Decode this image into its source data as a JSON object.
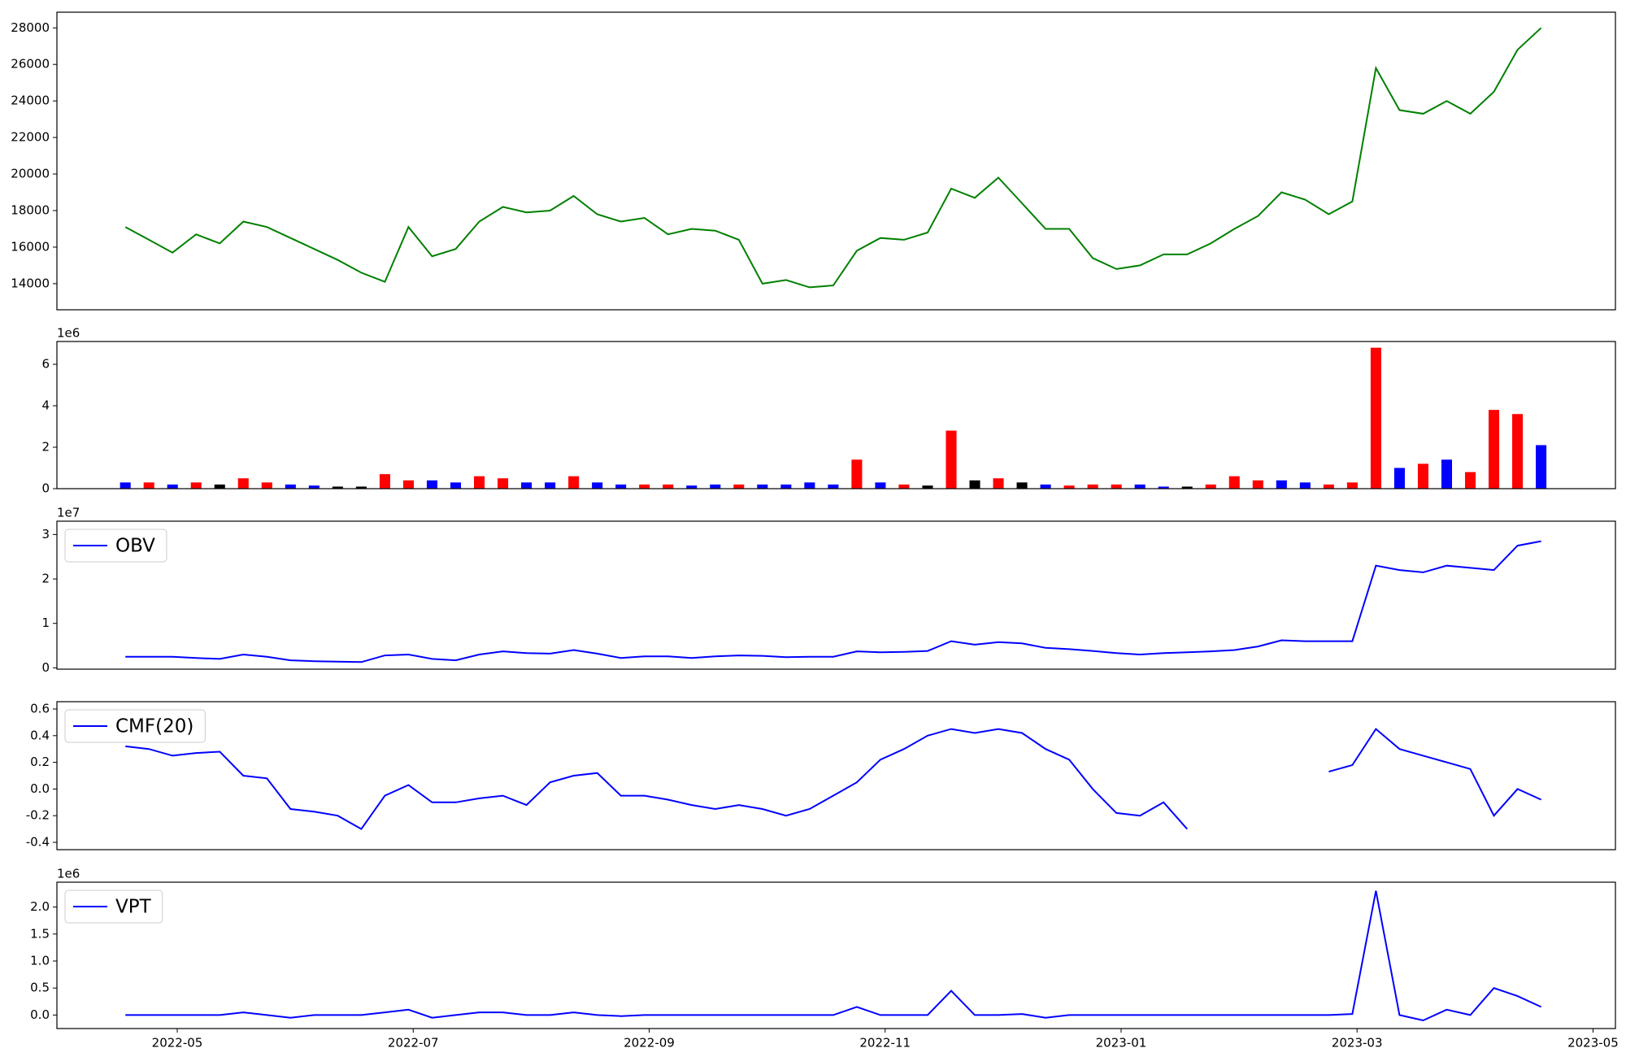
{
  "chart_data": {
    "type": "multi",
    "x": [
      -0.44,
      -0.24,
      -0.04,
      0.16,
      0.36,
      0.56,
      0.76,
      0.96,
      1.16,
      1.36,
      1.56,
      1.76,
      1.96,
      2.16,
      2.36,
      2.56,
      2.76,
      2.96,
      3.16,
      3.36,
      3.56,
      3.76,
      3.96,
      4.16,
      4.36,
      4.56,
      4.76,
      4.96,
      5.16,
      5.36,
      5.56,
      5.76,
      5.96,
      6.16,
      6.36,
      6.56,
      6.76,
      6.96,
      7.16,
      7.36,
      7.56,
      7.76,
      7.96,
      8.16,
      8.36,
      8.56,
      8.76,
      8.96,
      9.16,
      9.36,
      9.56,
      9.76,
      9.96,
      10.16,
      10.36,
      10.56,
      10.76,
      10.96,
      11.16,
      11.36,
      11.56
    ],
    "xlim": [
      -1.02,
      12.19
    ],
    "xticks": [
      {
        "value": 0,
        "label": "2022-05"
      },
      {
        "value": 2,
        "label": "2022-07"
      },
      {
        "value": 4,
        "label": "2022-09"
      },
      {
        "value": 6,
        "label": "2022-11"
      },
      {
        "value": 8,
        "label": "2023-01"
      },
      {
        "value": 10,
        "label": "2023-03"
      },
      {
        "value": 12,
        "label": "2023-05"
      }
    ],
    "panels": [
      {
        "type": "line",
        "color": "green",
        "ylim": [
          12571,
          28857
        ],
        "yticks": [
          14000,
          16000,
          18000,
          20000,
          22000,
          24000,
          26000,
          28000
        ],
        "values": [
          17100,
          16400,
          15700,
          16700,
          16200,
          17400,
          17100,
          16500,
          15900,
          15300,
          14600,
          14100,
          17100,
          15500,
          15900,
          17400,
          18200,
          17900,
          18000,
          18800,
          17800,
          17400,
          17600,
          16700,
          17000,
          16900,
          16400,
          14000,
          14200,
          13800,
          13900,
          15800,
          16500,
          16400,
          16800,
          19200,
          18700,
          19800,
          18400,
          17000,
          17000,
          15400,
          14800,
          15000,
          15600,
          15600,
          16200,
          17000,
          17700,
          19000,
          18600,
          17800,
          18500,
          25800,
          23500,
          23300,
          24000,
          23300,
          24500,
          26800,
          28000
        ]
      },
      {
        "type": "bar",
        "offset_label": "1e6",
        "ylim": [
          0,
          7.1
        ],
        "yticks": [
          0,
          2,
          4,
          6
        ],
        "values": [
          0.3,
          0.3,
          0.2,
          0.3,
          0.2,
          0.5,
          0.3,
          0.2,
          0.15,
          0.1,
          0.1,
          0.7,
          0.4,
          0.4,
          0.3,
          0.6,
          0.5,
          0.3,
          0.3,
          0.6,
          0.3,
          0.2,
          0.2,
          0.2,
          0.15,
          0.2,
          0.2,
          0.2,
          0.2,
          0.3,
          0.2,
          1.4,
          0.3,
          0.2,
          0.15,
          2.8,
          0.4,
          0.5,
          0.3,
          0.2,
          0.15,
          0.2,
          0.2,
          0.2,
          0.1,
          0.1,
          0.2,
          0.6,
          0.4,
          0.4,
          0.3,
          0.2,
          0.3,
          6.8,
          1.0,
          1.2,
          1.4,
          0.8,
          3.8,
          3.6,
          2.1
        ],
        "colors": [
          "blue",
          "red",
          "blue",
          "red",
          "black",
          "red",
          "red",
          "blue",
          "blue",
          "black",
          "black",
          "red",
          "red",
          "blue",
          "blue",
          "red",
          "red",
          "blue",
          "blue",
          "red",
          "blue",
          "blue",
          "red",
          "red",
          "blue",
          "blue",
          "red",
          "blue",
          "blue",
          "blue",
          "blue",
          "red",
          "blue",
          "red",
          "black",
          "red",
          "black",
          "red",
          "black",
          "blue",
          "red",
          "red",
          "red",
          "blue",
          "blue",
          "black",
          "red",
          "red",
          "red",
          "blue",
          "blue",
          "red",
          "red",
          "red",
          "blue",
          "red",
          "blue",
          "red",
          "red",
          "red",
          "blue"
        ]
      },
      {
        "type": "line",
        "offset_label": "1e7",
        "ylim": [
          -0.03,
          3.3
        ],
        "yticks": [
          0,
          1,
          2,
          3
        ],
        "legend": "upper left",
        "series": [
          {
            "name": "OBV",
            "color": "blue",
            "values": [
              0.25,
              0.25,
              0.25,
              0.22,
              0.2,
              0.3,
              0.25,
              0.17,
              0.15,
              0.14,
              0.13,
              0.28,
              0.3,
              0.2,
              0.17,
              0.3,
              0.37,
              0.33,
              0.32,
              0.4,
              0.32,
              0.22,
              0.26,
              0.26,
              0.22,
              0.26,
              0.28,
              0.27,
              0.24,
              0.25,
              0.25,
              0.37,
              0.35,
              0.36,
              0.38,
              0.6,
              0.52,
              0.58,
              0.55,
              0.45,
              0.42,
              0.38,
              0.33,
              0.3,
              0.33,
              0.35,
              0.37,
              0.4,
              0.48,
              0.62,
              0.6,
              0.6,
              0.6,
              2.3,
              2.2,
              2.15,
              2.3,
              2.25,
              2.2,
              2.75,
              2.85
            ]
          }
        ]
      },
      {
        "type": "line",
        "ylim": [
          -0.455,
          0.655
        ],
        "yticks": [
          -0.4,
          -0.2,
          {
            "value": 0,
            "label": "0.0"
          },
          0.2,
          0.4,
          0.6
        ],
        "legend": "upper left",
        "series": [
          {
            "name": "CMF(20)",
            "color": "blue",
            "values": [
              0.32,
              0.3,
              0.25,
              0.27,
              0.28,
              0.1,
              0.08,
              -0.15,
              -0.17,
              -0.2,
              -0.3,
              -0.05,
              0.03,
              -0.1,
              -0.1,
              -0.07,
              -0.05,
              -0.12,
              0.05,
              0.1,
              0.12,
              -0.05,
              -0.05,
              -0.08,
              -0.12,
              -0.15,
              -0.12,
              -0.15,
              -0.2,
              -0.15,
              -0.05,
              0.05,
              0.22,
              0.3,
              0.4,
              0.45,
              0.42,
              0.45,
              0.42,
              0.3,
              0.22,
              0.0,
              -0.18,
              -0.2,
              -0.1,
              -0.3,
              null,
              null,
              null,
              null,
              null,
              0.13,
              0.18,
              0.45,
              0.3,
              0.25,
              0.2,
              0.15,
              -0.2,
              0.0,
              -0.08
            ]
          }
        ]
      },
      {
        "type": "line",
        "offset_label": "1e6",
        "ylim": [
          -0.25,
          2.46
        ],
        "yticks": [
          {
            "value": 0,
            "label": "0.0"
          },
          {
            "value": 0.5,
            "label": "0.5"
          },
          {
            "value": 1,
            "label": "1.0"
          },
          {
            "value": 1.5,
            "label": "1.5"
          },
          {
            "value": 2,
            "label": "2.0"
          }
        ],
        "legend": "upper left",
        "series": [
          {
            "name": "VPT",
            "color": "blue",
            "values": [
              0.0,
              0.0,
              0.0,
              0.0,
              0.0,
              0.05,
              0.0,
              -0.05,
              0.0,
              0.0,
              0.0,
              0.05,
              0.1,
              -0.05,
              0.0,
              0.05,
              0.05,
              0.0,
              0.0,
              0.05,
              0.0,
              -0.02,
              0.0,
              0.0,
              0.0,
              0.0,
              0.0,
              0.0,
              0.0,
              0.0,
              0.0,
              0.15,
              0.0,
              0.0,
              0.0,
              0.45,
              0.0,
              0.0,
              0.02,
              -0.05,
              0.0,
              0.0,
              0.0,
              0.0,
              0.0,
              0.0,
              0.0,
              0.0,
              0.0,
              0.0,
              0.0,
              0.0,
              0.02,
              2.3,
              0.0,
              -0.1,
              0.1,
              0.0,
              0.5,
              0.35,
              0.15
            ]
          }
        ]
      }
    ]
  }
}
